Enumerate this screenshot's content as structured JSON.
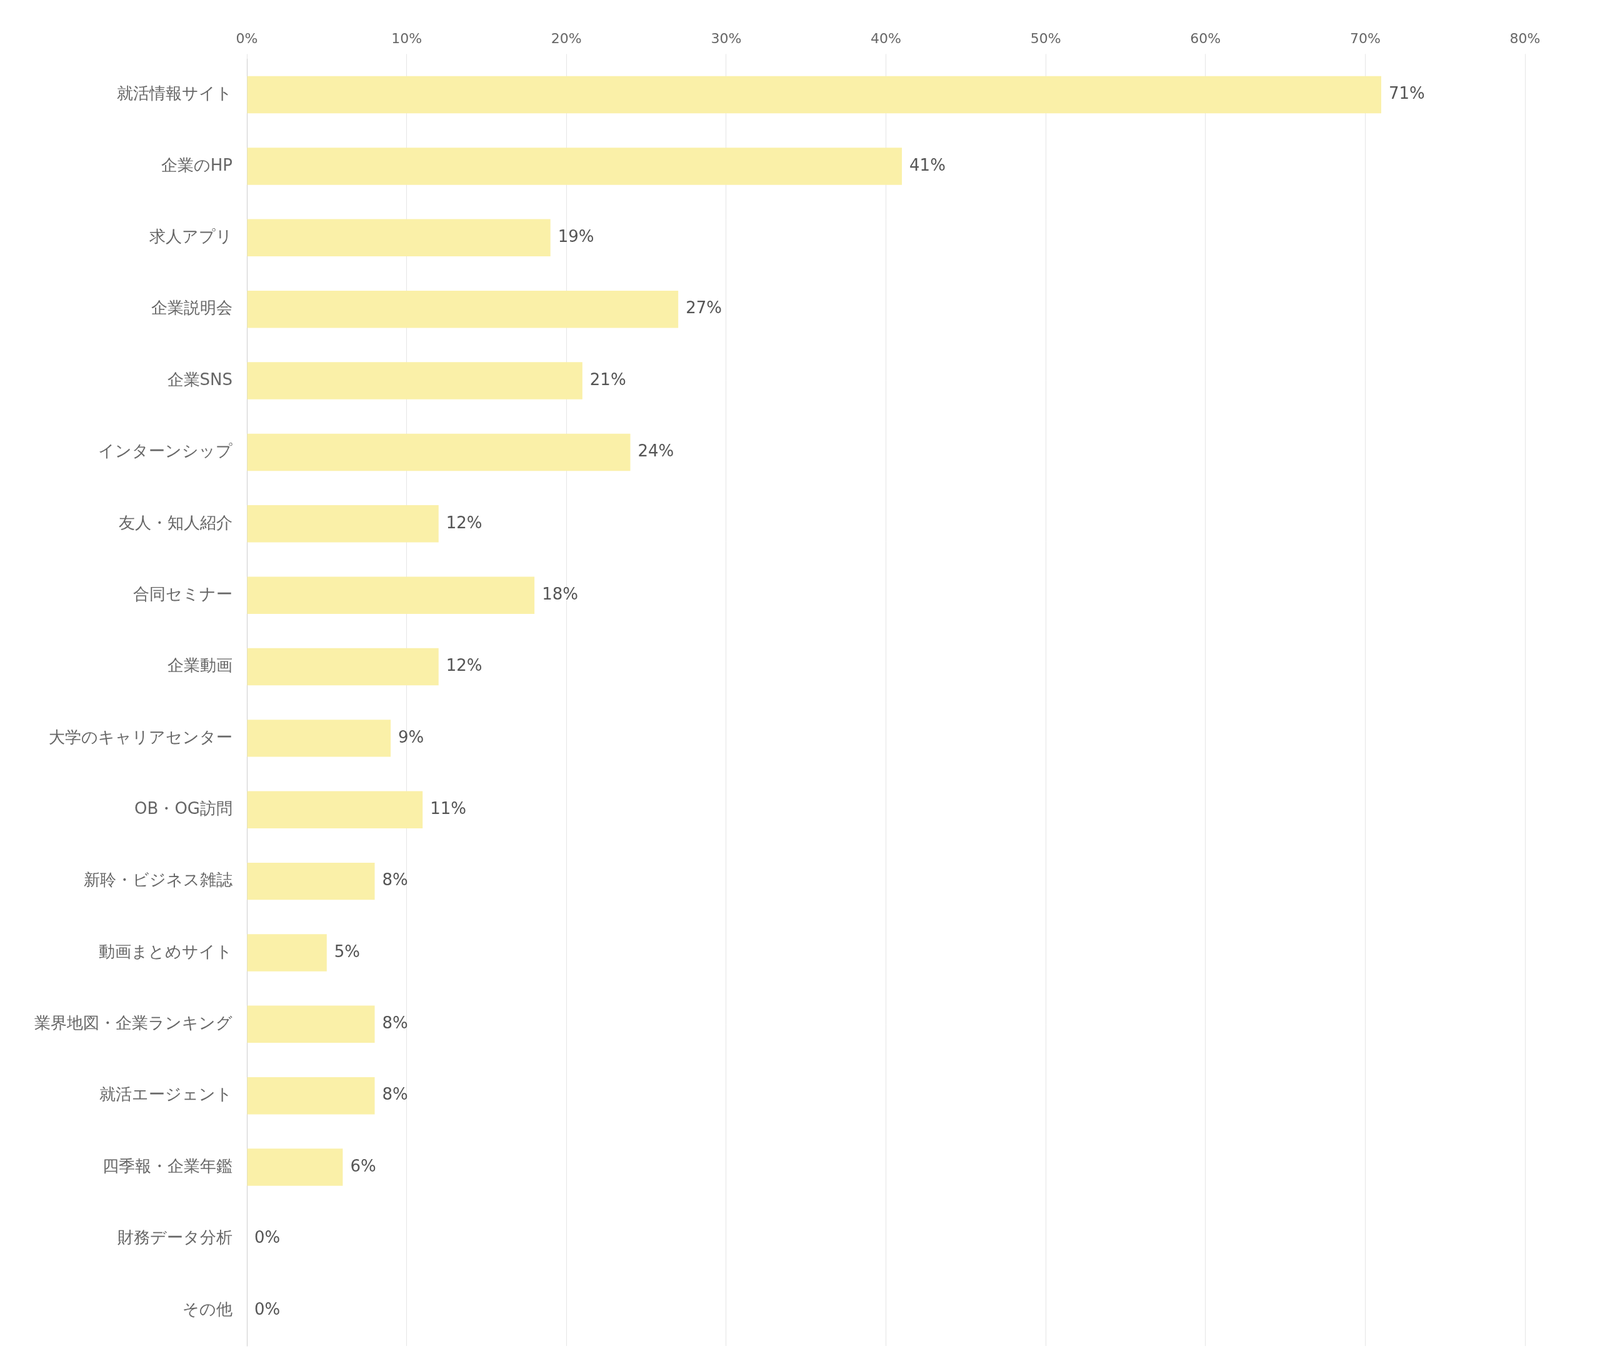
{
  "chart_data": {
    "type": "bar",
    "orientation": "horizontal",
    "categories": [
      "就活情報サイト",
      "企業のHP",
      "求人アプリ",
      "企業説明会",
      "企業SNS",
      "インターンシップ",
      "友人・知人紹介",
      "合同セミナー",
      "企業動画",
      "大学のキャリアセンター",
      "OB・OG訪問",
      "新聆・ビジネス雑誌",
      "動画まとめサイト",
      "業界地図・企業ランキング",
      "就活エージェント",
      "四季報・企業年鑑",
      "財務データ分析",
      "その他"
    ],
    "values": [
      71,
      41,
      19,
      27,
      21,
      24,
      12,
      18,
      12,
      9,
      11,
      8,
      5,
      8,
      8,
      6,
      0,
      0
    ],
    "value_labels": [
      "71%",
      "41%",
      "19%",
      "27%",
      "21%",
      "24%",
      "12%",
      "18%",
      "12%",
      "9%",
      "11%",
      "8%",
      "5%",
      "8%",
      "8%",
      "6%",
      "0%",
      "0%"
    ],
    "data_labels": true,
    "color": "#FAF0A8",
    "xlim": [
      0,
      80
    ],
    "xticks": [
      {
        "value": 0,
        "label": "0%"
      },
      {
        "value": 10,
        "label": "10%"
      },
      {
        "value": 20,
        "label": "20%"
      },
      {
        "value": 30,
        "label": "30%"
      },
      {
        "value": 40,
        "label": "40%"
      },
      {
        "value": 50,
        "label": "50%"
      },
      {
        "value": 60,
        "label": "60%"
      },
      {
        "value": 70,
        "label": "70%"
      },
      {
        "value": 80,
        "label": "80%"
      }
    ],
    "grid": true
  }
}
